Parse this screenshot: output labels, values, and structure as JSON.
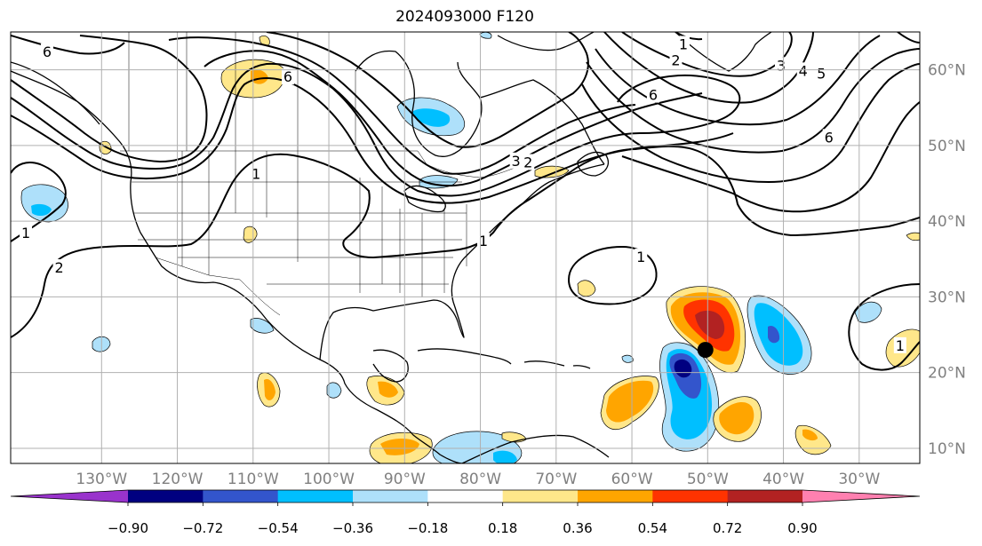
{
  "title": "2024093000 F120",
  "map": {
    "projection": "plate-carree",
    "extent": {
      "lon_min": -142,
      "lon_max": -22,
      "lat_min": 8,
      "lat_max": 65
    },
    "grid_lines": true,
    "grid_color": "#b0b0b0",
    "lon_ticks": [
      {
        "value": -130,
        "label": "130°W"
      },
      {
        "value": -120,
        "label": "120°W"
      },
      {
        "value": -110,
        "label": "110°W"
      },
      {
        "value": -100,
        "label": "100°W"
      },
      {
        "value": -90,
        "label": "90°W"
      },
      {
        "value": -80,
        "label": "80°W"
      },
      {
        "value": -70,
        "label": "70°W"
      },
      {
        "value": -60,
        "label": "60°W"
      },
      {
        "value": -50,
        "label": "50°W"
      },
      {
        "value": -40,
        "label": "40°W"
      },
      {
        "value": -30,
        "label": "30°W"
      }
    ],
    "lat_ticks": [
      {
        "value": 60,
        "label": "60°N"
      },
      {
        "value": 50,
        "label": "50°N"
      },
      {
        "value": 40,
        "label": "40°N"
      },
      {
        "value": 30,
        "label": "30°N"
      },
      {
        "value": 20,
        "label": "20°N"
      },
      {
        "value": 10,
        "label": "10°N"
      }
    ],
    "storm_marker": {
      "lon": -50.3,
      "lat": 23.0,
      "color": "#000000"
    }
  },
  "contour_labels": [
    {
      "text": "6",
      "lon": -137.2,
      "lat": 62.3
    },
    {
      "text": "6",
      "lon": -105.4,
      "lat": 59.0
    },
    {
      "text": "1",
      "lon": -109.6,
      "lat": 46.2
    },
    {
      "text": "1",
      "lon": -140.0,
      "lat": 38.4
    },
    {
      "text": "2",
      "lon": -135.6,
      "lat": 33.8
    },
    {
      "text": "1",
      "lon": -79.6,
      "lat": 37.3
    },
    {
      "text": "3",
      "lon": -75.3,
      "lat": 47.9
    },
    {
      "text": "2",
      "lon": -73.7,
      "lat": 47.7
    },
    {
      "text": "1",
      "lon": -53.2,
      "lat": 63.3
    },
    {
      "text": "2",
      "lon": -54.2,
      "lat": 61.2
    },
    {
      "text": "3",
      "lon": -40.3,
      "lat": 60.5
    },
    {
      "text": "4",
      "lon": -37.4,
      "lat": 59.8
    },
    {
      "text": "5",
      "lon": -35.0,
      "lat": 59.4
    },
    {
      "text": "6",
      "lon": -57.2,
      "lat": 56.6
    },
    {
      "text": "6",
      "lon": -34.0,
      "lat": 51.0
    },
    {
      "text": "1",
      "lon": -58.8,
      "lat": 35.2
    },
    {
      "text": "1",
      "lon": -24.6,
      "lat": 23.5
    }
  ],
  "colorbar": {
    "colors": [
      "#9933cc",
      "#000080",
      "#3355cc",
      "#00bfff",
      "#aee0fa",
      "#ffffff",
      "#ffe78a",
      "#ffa500",
      "#ff3300",
      "#b22222",
      "#ff80b0"
    ],
    "tick_labels": [
      "−0.90",
      "−0.72",
      "−0.54",
      "−0.36",
      "−0.18",
      "0.18",
      "0.36",
      "0.54",
      "0.72",
      "0.90"
    ]
  }
}
